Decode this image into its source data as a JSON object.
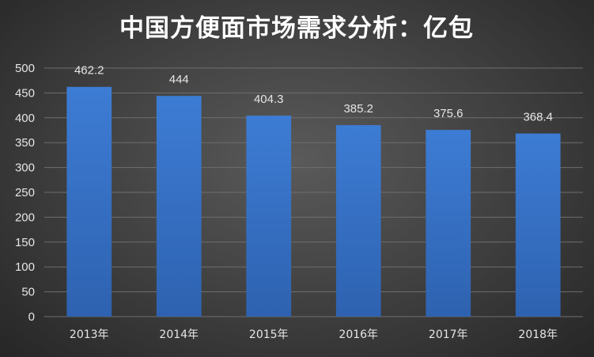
{
  "chart_data": {
    "type": "bar",
    "title": "中国方便面市场需求分析：亿包",
    "categories": [
      "2013年",
      "2014年",
      "2015年",
      "2016年",
      "2017年",
      "2018年"
    ],
    "values": [
      462.2,
      444,
      404.3,
      385.2,
      375.6,
      368.4
    ],
    "data_labels": [
      "462.2",
      "444",
      "404.3",
      "385.2",
      "375.6",
      "368.4"
    ],
    "xlabel": "",
    "ylabel": "",
    "ylim": [
      0,
      500
    ],
    "yticks": [
      "0",
      "50",
      "100",
      "150",
      "200",
      "250",
      "300",
      "350",
      "400",
      "450",
      "500"
    ],
    "grid": true,
    "legend": "none",
    "bar_color": "#3a74c8",
    "background_color": "#3e3e3e"
  }
}
